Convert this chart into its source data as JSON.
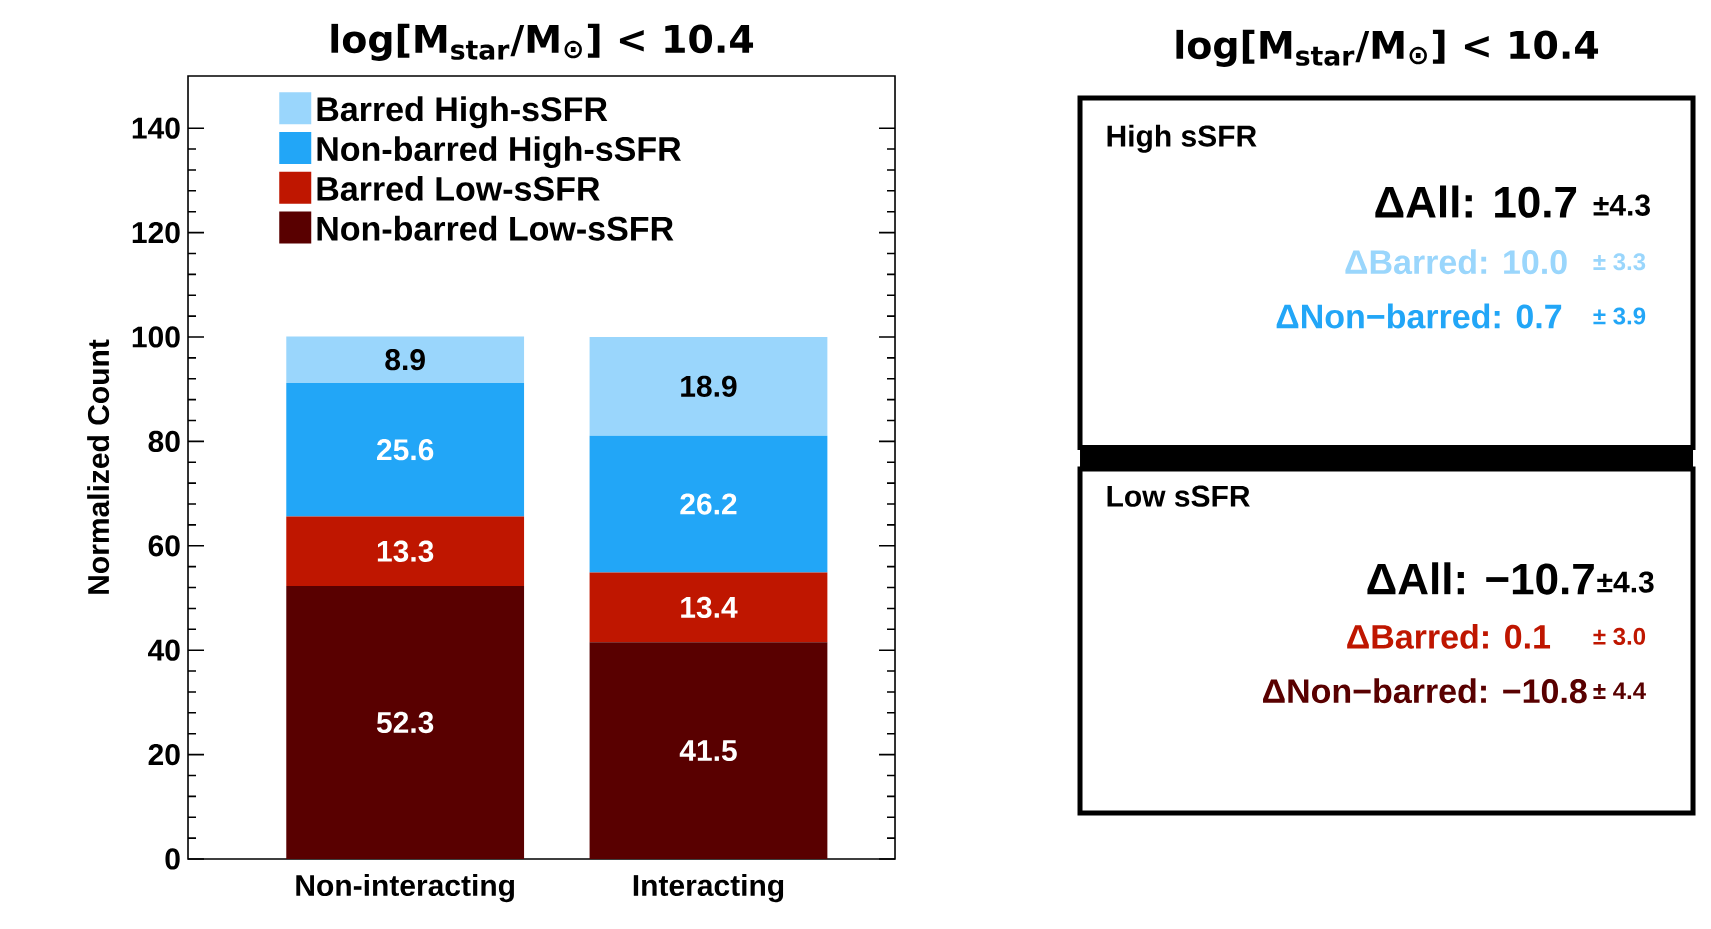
{
  "chart_data": [
    {
      "type": "bar",
      "title": "log[M$_{star}$/M$_{⊙}$] < 10.4",
      "ylabel": "Normalized Count",
      "categories": [
        "Non-interacting",
        "Interacting"
      ],
      "stacked": true,
      "series": [
        {
          "name": "Non-barred Low-sSFR",
          "color": "#590000",
          "values": [
            52.3,
            41.5
          ]
        },
        {
          "name": "Barred Low-sSFR",
          "color": "#bf1600",
          "values": [
            13.3,
            13.4
          ]
        },
        {
          "name": "Non-barred High-sSFR",
          "color": "#22a6f7",
          "values": [
            25.6,
            26.2
          ]
        },
        {
          "name": "Barred High-sSFR",
          "color": "#9ad6fc",
          "values": [
            8.9,
            18.9
          ]
        }
      ],
      "ylim": [
        0,
        150
      ],
      "yticks": [
        0,
        20,
        40,
        60,
        80,
        100,
        120,
        140
      ],
      "data_labels": true,
      "legend": "top left"
    },
    {
      "type": "other",
      "title": "log[M$_{star}$/M$_{⊙}$] < 10.4",
      "annotations": [
        "High sSFR",
        "ΔAll:  10.7",
        "±4.3",
        "ΔBarred:  10.0",
        "± 3.3",
        "ΔNon−barred:  0.7",
        "± 3.9",
        "Low sSFR",
        "ΔAll: −10.7",
        "±4.3",
        "ΔBarred:  0.1",
        "± 3.0",
        "ΔNon−barred: −10.8",
        "± 4.4"
      ],
      "colors": [
        "#000000",
        "#000000",
        "#000000",
        "#9ad6fc",
        "#9ad6fc",
        "#22a6f7",
        "#22a6f7",
        "#000000",
        "#000000",
        "#000000",
        "#bf1600",
        "#bf1600",
        "#590000",
        "#590000"
      ]
    }
  ]
}
